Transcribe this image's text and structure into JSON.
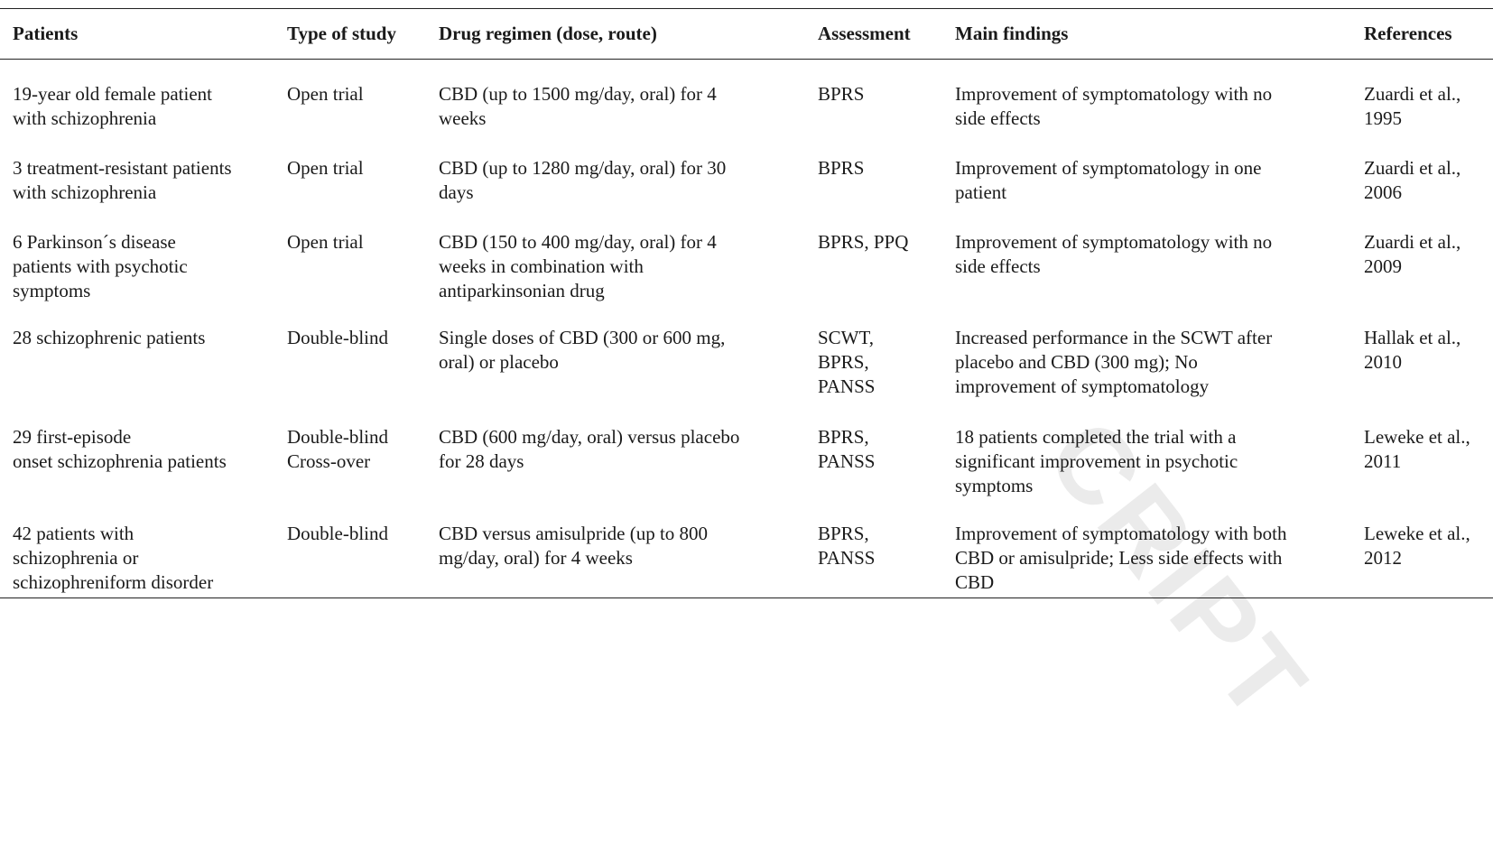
{
  "watermark": "CRIPT",
  "table": {
    "headers": [
      "Patients",
      "Type of study",
      "Drug regimen (dose, route)",
      "Assessment",
      "Main findings",
      "References"
    ],
    "rows": [
      {
        "patients": [
          "19-year old female patient",
          "with schizophrenia"
        ],
        "study": [
          "Open trial"
        ],
        "regimen": [
          "CBD (up to 1500 mg/day, oral) for 4",
          "weeks"
        ],
        "assessment": [
          "BPRS"
        ],
        "findings": [
          "Improvement of symptomatology with no",
          "side effects"
        ],
        "references": [
          "Zuardi et al.,",
          "1995"
        ]
      },
      {
        "patients": [
          "3 treatment-resistant patients",
          "with schizophrenia"
        ],
        "study": [
          "Open trial"
        ],
        "regimen": [
          "CBD (up to 1280 mg/day, oral) for 30",
          "days"
        ],
        "assessment": [
          "BPRS"
        ],
        "findings": [
          "Improvement of symptomatology in one",
          "patient"
        ],
        "references": [
          "Zuardi et al.,",
          "2006"
        ]
      },
      {
        "patients": [
          "6 Parkinson´s disease",
          "patients with psychotic",
          "symptoms"
        ],
        "study": [
          "Open trial"
        ],
        "regimen": [
          "CBD (150 to 400 mg/day, oral) for 4",
          "weeks in combination with",
          "antiparkinsonian drug"
        ],
        "assessment": [
          "BPRS, PPQ"
        ],
        "findings": [
          "Improvement of symptomatology with no",
          "side effects"
        ],
        "references": [
          "Zuardi et al.,",
          "2009"
        ]
      },
      {
        "patients": [
          "28 schizophrenic patients"
        ],
        "study": [
          "Double-blind"
        ],
        "regimen": [
          "Single doses of CBD (300 or 600 mg,",
          "oral) or placebo"
        ],
        "assessment": [
          "SCWT,",
          "BPRS,",
          "PANSS"
        ],
        "findings": [
          "Increased performance in the SCWT after",
          "placebo and CBD (300 mg); No",
          "improvement of symptomatology"
        ],
        "references": [
          "Hallak et al.,",
          "2010"
        ]
      },
      {
        "patients": [
          "29 first-episode",
          "onset schizophrenia patients"
        ],
        "study": [
          "Double-blind",
          "Cross-over"
        ],
        "regimen": [
          "CBD (600 mg/day, oral) versus placebo",
          "for 28 days"
        ],
        "assessment": [
          "BPRS,",
          "PANSS"
        ],
        "findings": [
          "18 patients completed the trial with a",
          "significant improvement in psychotic",
          "symptoms"
        ],
        "references": [
          "Leweke et al.,",
          "2011"
        ]
      },
      {
        "patients": [
          "42 patients with",
          "schizophrenia or",
          "schizophreniform disorder"
        ],
        "study": [
          "Double-blind"
        ],
        "regimen": [
          "CBD versus amisulpride (up to 800",
          "mg/day, oral) for 4 weeks"
        ],
        "assessment": [
          "BPRS,",
          "PANSS"
        ],
        "findings": [
          "Improvement of symptomatology with both",
          "CBD or amisulpride; Less side effects with",
          "CBD"
        ],
        "references": [
          "Leweke et al.,",
          "2012"
        ]
      }
    ]
  }
}
